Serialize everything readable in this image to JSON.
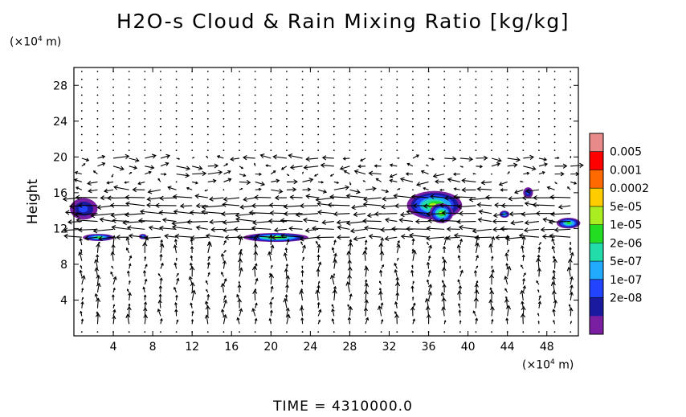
{
  "title": "H2O-s Cloud & Rain Mixing Ratio [kg/kg]",
  "footer": {
    "time_label": "TIME = 4310000.0"
  },
  "chart_data": {
    "type": "heatmap",
    "overlay": "wind vector field",
    "ylabel": "Height",
    "x_unit": {
      "prefix": "(×10",
      "exp": "4",
      "suffix": " m)"
    },
    "y_unit": {
      "prefix": "(×10",
      "exp": "4",
      "suffix": " m)"
    },
    "xlim": [
      0,
      51.2
    ],
    "ylim": [
      0,
      30
    ],
    "x_ticks": [
      "4",
      "8",
      "12",
      "16",
      "20",
      "24",
      "28",
      "32",
      "36",
      "40",
      "44",
      "48"
    ],
    "y_ticks": [
      "4",
      "8",
      "12",
      "16",
      "20",
      "24",
      "28"
    ],
    "colorbar": {
      "labels": [
        "0.005",
        "0.001",
        "0.0002",
        "5e-05",
        "1e-05",
        "2e-06",
        "5e-07",
        "1e-07",
        "2e-08"
      ],
      "colors": [
        "#e98a8a",
        "#ff0000",
        "#ff6a00",
        "#ffcc00",
        "#aaee22",
        "#22dd22",
        "#22ddaa",
        "#22aaff",
        "#2244ff",
        "#1a1aa0",
        "#7a1fa2"
      ]
    },
    "cloud_regions": [
      {
        "x_center": 1.0,
        "y_center": 14.2,
        "half_width": 1.4,
        "half_height": 1.2,
        "level": 8
      },
      {
        "x_center": 2.5,
        "y_center": 11.0,
        "half_width": 1.6,
        "half_height": 0.4,
        "level": 5
      },
      {
        "x_center": 7.0,
        "y_center": 11.1,
        "half_width": 0.4,
        "half_height": 0.3,
        "level": 7
      },
      {
        "x_center": 20.5,
        "y_center": 11.0,
        "half_width": 3.3,
        "half_height": 0.5,
        "level": 4
      },
      {
        "x_center": 36.6,
        "y_center": 14.6,
        "half_width": 2.8,
        "half_height": 1.6,
        "level": 4
      },
      {
        "x_center": 37.3,
        "y_center": 13.7,
        "half_width": 1.2,
        "half_height": 1.1,
        "level": 4
      },
      {
        "x_center": 43.7,
        "y_center": 13.6,
        "half_width": 0.5,
        "half_height": 0.4,
        "level": 6
      },
      {
        "x_center": 46.1,
        "y_center": 16.0,
        "half_width": 0.5,
        "half_height": 0.6,
        "level": 8
      },
      {
        "x_center": 50.2,
        "y_center": 12.6,
        "half_width": 1.2,
        "half_height": 0.6,
        "level": 5
      }
    ],
    "wind_bands": [
      {
        "y_bottom": 10.8,
        "y_top": 15.8,
        "u": -1.0,
        "speed": "strong"
      },
      {
        "y_bottom": 16.0,
        "y_top": 20.2,
        "u": 0.6,
        "speed": "variable"
      },
      {
        "y_bottom": 0.5,
        "y_top": 10.4,
        "u": 0.1,
        "speed": "weak, mostly vertical"
      },
      {
        "y_bottom": 20.5,
        "y_top": 30.0,
        "u": 0.0,
        "speed": "calm"
      }
    ]
  }
}
